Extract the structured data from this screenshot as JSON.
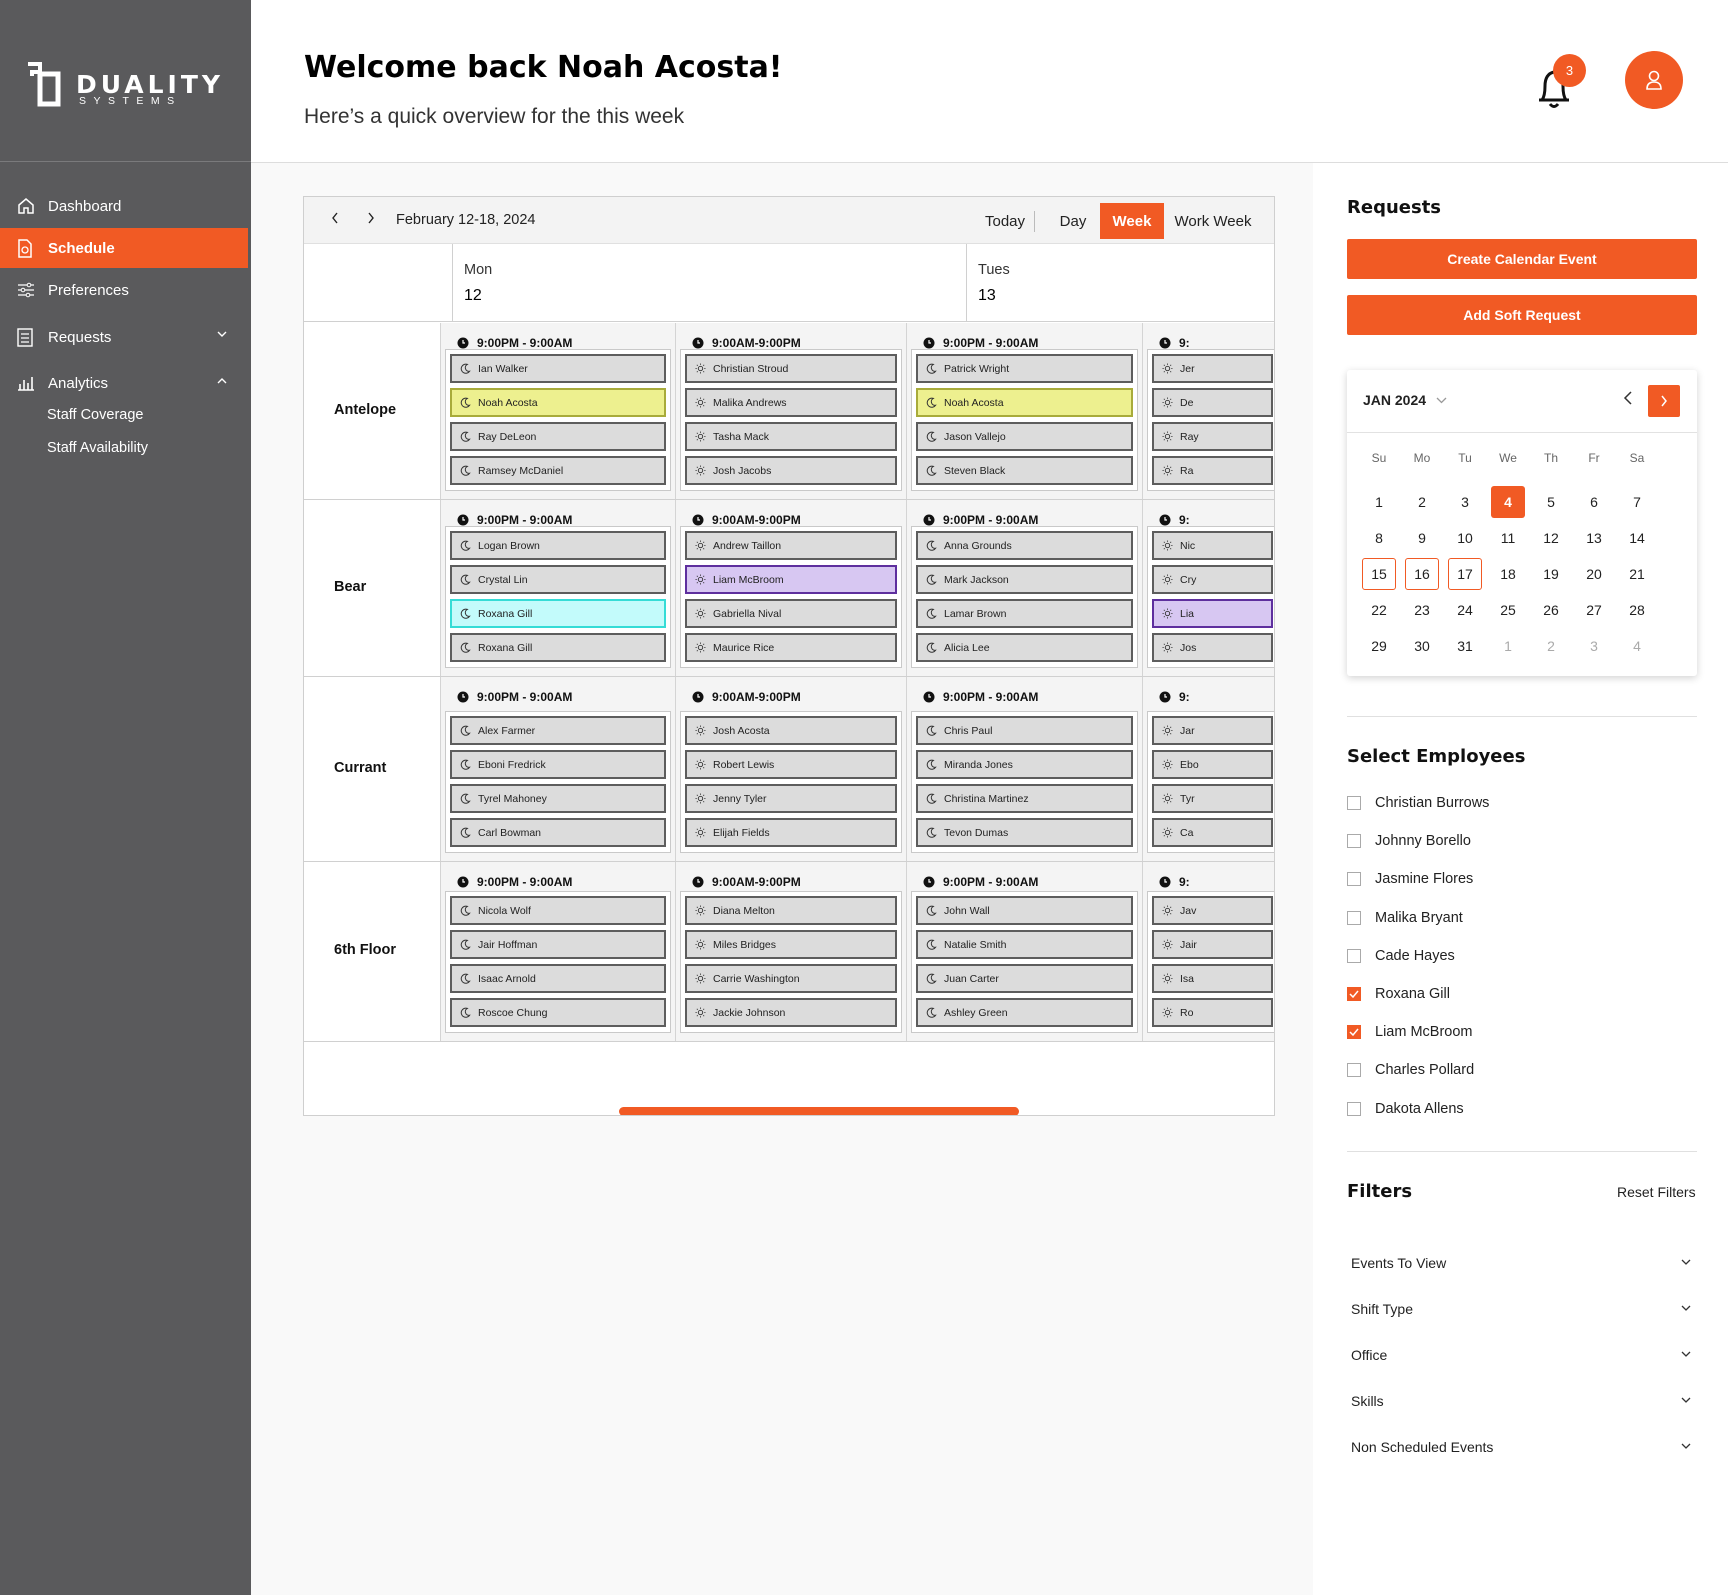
{
  "brand": {
    "name": "DUALITY",
    "tagline": "SYSTEMS"
  },
  "nav": {
    "items": [
      {
        "label": "Dashboard",
        "icon": "home-icon"
      },
      {
        "label": "Schedule",
        "icon": "document-icon",
        "active": true
      },
      {
        "label": "Preferences",
        "icon": "sliders-icon"
      },
      {
        "label": "Requests",
        "icon": "list-icon"
      },
      {
        "label": "Analytics",
        "icon": "bar-chart-icon"
      }
    ],
    "analytics_sub": [
      "Staff Coverage",
      "Staff Availability"
    ]
  },
  "header": {
    "title": "Welcome back Noah Acosta!",
    "subtitle": "Here’s a quick overview for the this week",
    "notification_count": "3"
  },
  "calendar": {
    "date_range": "February 12-18, 2024",
    "views": [
      "Today",
      "Day",
      "Week",
      "Work Week"
    ],
    "active_view": "Week",
    "days": [
      {
        "name": "Mon",
        "num": "12"
      },
      {
        "name": "Tues",
        "num": "13"
      }
    ],
    "units": [
      {
        "name": "Antelope",
        "shifts": [
          {
            "time": "9:00PM - 9:00AM",
            "type": "night",
            "staff": [
              {
                "n": "Ian Walker"
              },
              {
                "n": "Noah Acosta",
                "h": "yellow"
              },
              {
                "n": "Ray DeLeon"
              },
              {
                "n": "Ramsey McDaniel"
              }
            ]
          },
          {
            "time": "9:00AM-9:00PM",
            "type": "day",
            "staff": [
              {
                "n": "Christian Stroud"
              },
              {
                "n": "Malika Andrews"
              },
              {
                "n": "Tasha Mack"
              },
              {
                "n": "Josh Jacobs"
              }
            ]
          },
          {
            "time": "9:00PM - 9:00AM",
            "type": "night",
            "staff": [
              {
                "n": "Patrick Wright"
              },
              {
                "n": "Noah Acosta",
                "h": "yellow"
              },
              {
                "n": "Jason Vallejo"
              },
              {
                "n": "Steven Black"
              }
            ]
          },
          {
            "time": "9:",
            "type": "day",
            "staff": [
              {
                "n": "Jer"
              },
              {
                "n": "De"
              },
              {
                "n": "Ray"
              },
              {
                "n": "Ra"
              }
            ]
          }
        ]
      },
      {
        "name": "Bear",
        "shifts": [
          {
            "time": "9:00PM - 9:00AM",
            "type": "night",
            "staff": [
              {
                "n": "Logan Brown"
              },
              {
                "n": "Crystal Lin"
              },
              {
                "n": "Roxana Gill",
                "h": "cyan"
              },
              {
                "n": "Roxana Gill"
              }
            ]
          },
          {
            "time": "9:00AM-9:00PM",
            "type": "day",
            "staff": [
              {
                "n": "Andrew Taillon"
              },
              {
                "n": "Liam McBroom",
                "h": "purple"
              },
              {
                "n": "Gabriella Nival"
              },
              {
                "n": "Maurice Rice"
              }
            ]
          },
          {
            "time": "9:00PM - 9:00AM",
            "type": "night",
            "staff": [
              {
                "n": "Anna Grounds"
              },
              {
                "n": "Mark Jackson"
              },
              {
                "n": "Lamar Brown"
              },
              {
                "n": "Alicia Lee"
              }
            ]
          },
          {
            "time": "9:",
            "type": "day",
            "staff": [
              {
                "n": "Nic"
              },
              {
                "n": "Cry"
              },
              {
                "n": "Lia",
                "h": "purple"
              },
              {
                "n": "Jos"
              }
            ]
          }
        ]
      },
      {
        "name": "Currant",
        "shifts": [
          {
            "time": "9:00PM - 9:00AM",
            "type": "night",
            "staff": [
              {
                "n": "Alex Farmer"
              },
              {
                "n": "Eboni Fredrick"
              },
              {
                "n": "Tyrel Mahoney"
              },
              {
                "n": "Carl Bowman"
              }
            ]
          },
          {
            "time": "9:00AM-9:00PM",
            "type": "day",
            "staff": [
              {
                "n": "Josh Acosta"
              },
              {
                "n": "Robert Lewis"
              },
              {
                "n": "Jenny Tyler"
              },
              {
                "n": "Elijah Fields"
              }
            ]
          },
          {
            "time": "9:00PM - 9:00AM",
            "type": "night",
            "staff": [
              {
                "n": "Chris Paul"
              },
              {
                "n": "Miranda Jones"
              },
              {
                "n": "Christina Martinez"
              },
              {
                "n": "Tevon Dumas"
              }
            ]
          },
          {
            "time": "9:",
            "type": "day",
            "staff": [
              {
                "n": "Jar"
              },
              {
                "n": "Ebo"
              },
              {
                "n": "Tyr"
              },
              {
                "n": "Ca"
              }
            ]
          }
        ]
      },
      {
        "name": "6th Floor",
        "shifts": [
          {
            "time": "9:00PM - 9:00AM",
            "type": "night",
            "staff": [
              {
                "n": "Nicola Wolf"
              },
              {
                "n": "Jair Hoffman"
              },
              {
                "n": "Isaac Arnold"
              },
              {
                "n": "Roscoe Chung"
              }
            ]
          },
          {
            "time": "9:00AM-9:00PM",
            "type": "day",
            "staff": [
              {
                "n": "Diana Melton"
              },
              {
                "n": "Miles Bridges"
              },
              {
                "n": "Carrie Washington"
              },
              {
                "n": "Jackie Johnson"
              }
            ]
          },
          {
            "time": "9:00PM - 9:00AM",
            "type": "night",
            "staff": [
              {
                "n": "John Wall"
              },
              {
                "n": "Natalie Smith"
              },
              {
                "n": "Juan Carter"
              },
              {
                "n": "Ashley Green"
              }
            ]
          },
          {
            "time": "9:",
            "type": "day",
            "staff": [
              {
                "n": "Jav"
              },
              {
                "n": "Jair"
              },
              {
                "n": "Isa"
              },
              {
                "n": "Ro"
              }
            ]
          }
        ]
      }
    ]
  },
  "requests": {
    "title": "Requests",
    "create_label": "Create Calendar Event",
    "soft_label": "Add Soft Request"
  },
  "mini_calendar": {
    "month_label": "JAN 2024",
    "weekdays": [
      "Su",
      "Mo",
      "Tu",
      "We",
      "Th",
      "Fr",
      "Sa"
    ],
    "weeks": [
      [
        "1",
        "2",
        "3",
        "4",
        "5",
        "6",
        "7"
      ],
      [
        "8",
        "9",
        "10",
        "11",
        "12",
        "13",
        "14"
      ],
      [
        "15",
        "16",
        "17",
        "18",
        "19",
        "20",
        "21"
      ],
      [
        "22",
        "23",
        "24",
        "25",
        "26",
        "27",
        "28"
      ],
      [
        "29",
        "30",
        "31",
        "1",
        "2",
        "3",
        "4"
      ]
    ],
    "today": "4",
    "selected": [
      "15",
      "16",
      "17"
    ]
  },
  "employees": {
    "title": "Select Employees",
    "list": [
      {
        "name": "Christian Burrows",
        "checked": false
      },
      {
        "name": "Johnny Borello",
        "checked": false
      },
      {
        "name": "Jasmine Flores",
        "checked": false
      },
      {
        "name": "Malika Bryant",
        "checked": false
      },
      {
        "name": "Cade Hayes",
        "checked": false
      },
      {
        "name": "Roxana Gill",
        "checked": true
      },
      {
        "name": "Liam McBroom",
        "checked": true
      },
      {
        "name": "Charles Pollard",
        "checked": false
      },
      {
        "name": "Dakota Allens",
        "checked": false
      }
    ]
  },
  "filters": {
    "title": "Filters",
    "reset_label": "Reset Filters",
    "items": [
      "Events To View",
      "Shift Type",
      "Office",
      "Skills",
      "Non Scheduled Events"
    ]
  },
  "colors": {
    "accent": "#f15a24",
    "highlight_yellow": "#edf08f",
    "highlight_cyan": "#c3fbfb",
    "highlight_purple": "#d7c7f2"
  }
}
